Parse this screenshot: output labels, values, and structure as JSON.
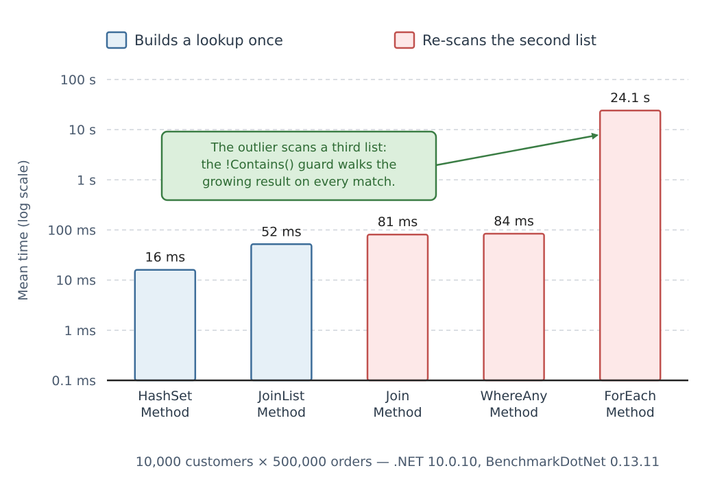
{
  "chart_data": {
    "type": "bar",
    "scale": "log",
    "ylabel": "Mean time (log scale)",
    "yticks": [
      {
        "value": 0.0001,
        "label": "0.1 ms"
      },
      {
        "value": 0.001,
        "label": "1 ms"
      },
      {
        "value": 0.01,
        "label": "10 ms"
      },
      {
        "value": 0.1,
        "label": "100 ms"
      },
      {
        "value": 1,
        "label": "1 s"
      },
      {
        "value": 10,
        "label": "10 s"
      },
      {
        "value": 100,
        "label": "100 s"
      }
    ],
    "ylim": [
      0.0001,
      100
    ],
    "grid": true,
    "legend_position": "top",
    "legend": [
      {
        "name": "Builds a lookup once",
        "fill": "#e6f0f7",
        "stroke": "#3d6d99"
      },
      {
        "name": "Re-scans the second list",
        "fill": "#fde8e8",
        "stroke": "#c0504d"
      }
    ],
    "bars": [
      {
        "category": [
          "HashSet",
          "Method"
        ],
        "value": 0.016,
        "label": "16 ms",
        "group": 0
      },
      {
        "category": [
          "JoinList",
          "Method"
        ],
        "value": 0.052,
        "label": "52 ms",
        "group": 0
      },
      {
        "category": [
          "Join",
          "Method"
        ],
        "value": 0.081,
        "label": "81 ms",
        "group": 1
      },
      {
        "category": [
          "WhereAny",
          "Method"
        ],
        "value": 0.084,
        "label": "84 ms",
        "group": 1
      },
      {
        "category": [
          "ForEach",
          "Method"
        ],
        "value": 24.1,
        "label": "24.1 s",
        "group": 1
      }
    ],
    "annotation": {
      "lines": [
        "The outlier scans a third list:",
        "the !Contains() guard walks the",
        "growing result on every match."
      ],
      "target_bar": 4,
      "color": "#3a7d44",
      "fill": "#dcefdc"
    },
    "footnote": "10,000 customers × 500,000 orders — .NET 10.0.10, BenchmarkDotNet 0.13.11"
  }
}
